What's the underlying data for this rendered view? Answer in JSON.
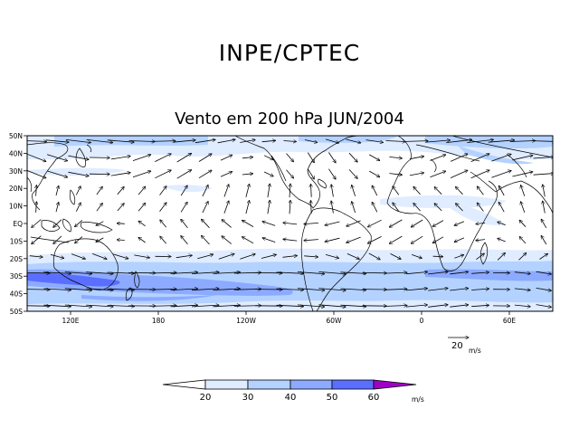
{
  "header": {
    "title": "INPE/CPTEC",
    "subtitle": "Vento em 200 hPa JUN/2004"
  },
  "map": {
    "lat_labels": [
      "50N",
      "40N",
      "30N",
      "20N",
      "10N",
      "EQ",
      "10S",
      "20S",
      "30S",
      "40S",
      "50S"
    ],
    "lon_labels": [
      "120E",
      "180",
      "120W",
      "60W",
      "0",
      "60E"
    ]
  },
  "reference_vector": {
    "value": "20",
    "unit": "m/s"
  },
  "colorbar": {
    "levels": [
      "20",
      "30",
      "40",
      "50",
      "60"
    ],
    "unit": "m/s",
    "colors": [
      "#ffffff",
      "#e0ecff",
      "#b4d2ff",
      "#8caaff",
      "#5a6eff",
      "#3c28e6",
      "#a000c8"
    ]
  }
}
